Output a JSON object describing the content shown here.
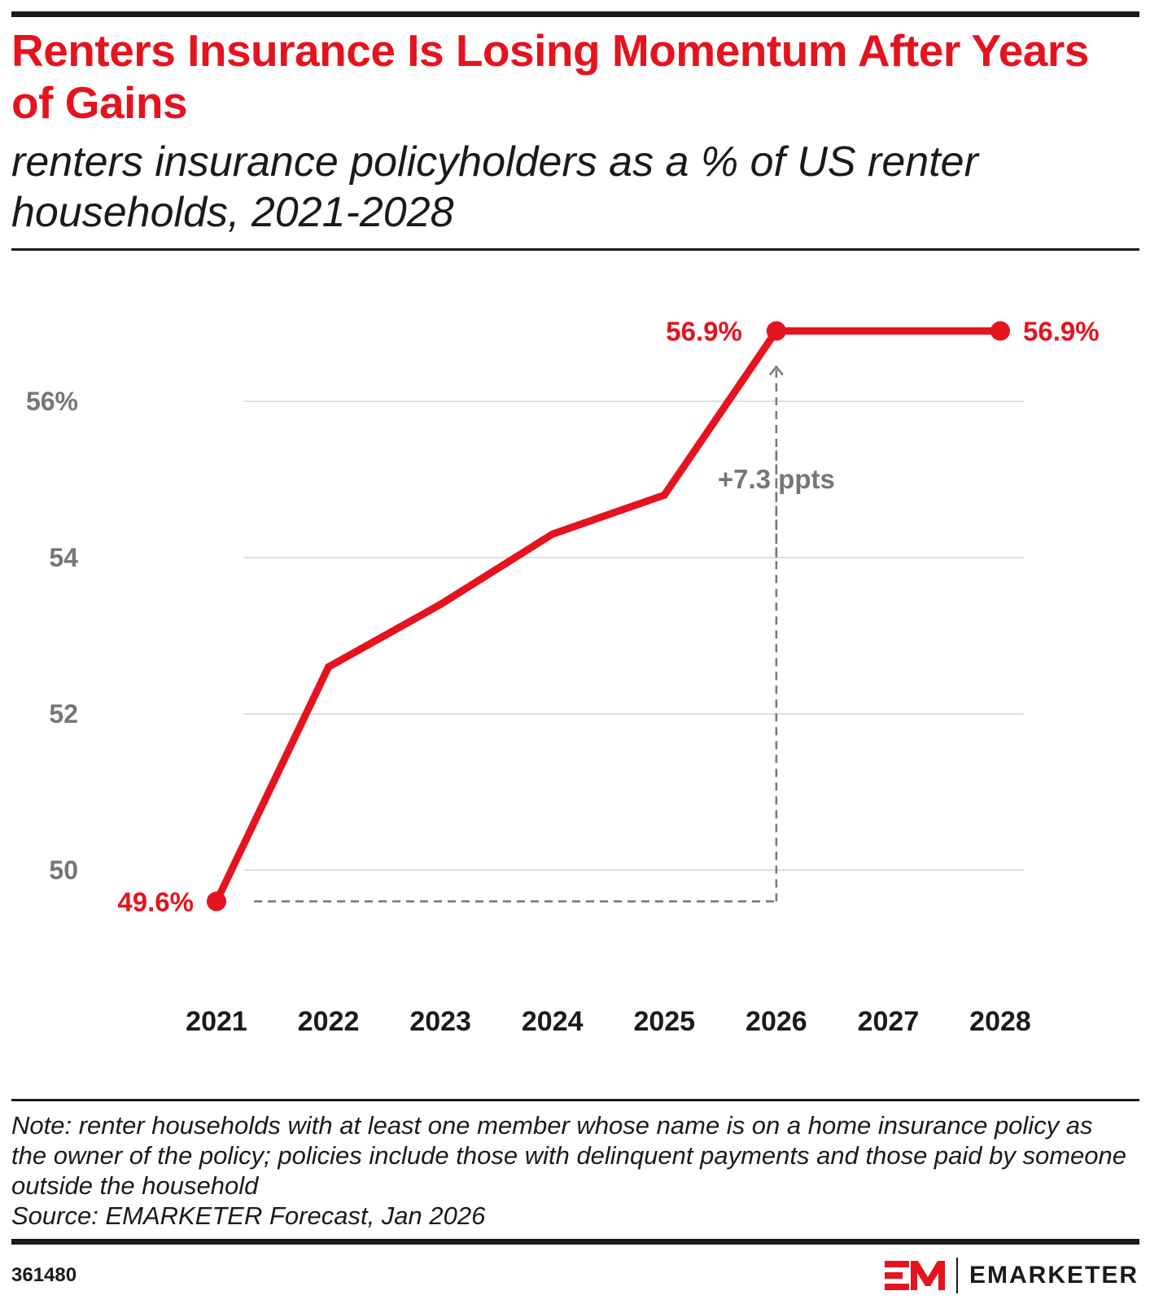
{
  "header": {
    "title": "Renters Insurance Is Losing Momentum After Years of Gains",
    "subtitle": "renters insurance policyholders as a % of US renter households, 2021-2028"
  },
  "chart_data": {
    "type": "line",
    "title": "Renters Insurance Is Losing Momentum After Years of Gains",
    "subtitle": "renters insurance policyholders as a % of US renter households, 2021-2028",
    "categories": [
      "2021",
      "2022",
      "2023",
      "2024",
      "2025",
      "2026",
      "2027",
      "2028"
    ],
    "series": [
      {
        "values": [
          49.6,
          52.6,
          53.4,
          54.3,
          54.8,
          56.9,
          56.9,
          56.9
        ]
      }
    ],
    "ylim": [
      48.5,
      57.5
    ],
    "yticks": [
      50,
      52,
      54,
      56
    ],
    "ytick_labels": [
      "50",
      "52",
      "54",
      "56%"
    ],
    "grid": true,
    "color": "#e5131e",
    "data_labels": [
      {
        "index": 0,
        "text": "49.6%"
      },
      {
        "index": 5,
        "text": "56.9%"
      },
      {
        "index": 7,
        "text": "56.9%"
      }
    ],
    "annotation": {
      "text": "+7.3 ppts",
      "from_index": 0,
      "to_index": 5
    }
  },
  "footer": {
    "note": "Note: renter households with at least one member whose name is on a home insurance policy as the owner of the policy; policies include those with delinquent payments and those paid by someone outside the household",
    "source": "Source: EMARKETER Forecast, Jan 2026",
    "chart_id": "361480",
    "brand_name": "EMARKETER",
    "brand_icon": "em-logo-icon"
  }
}
